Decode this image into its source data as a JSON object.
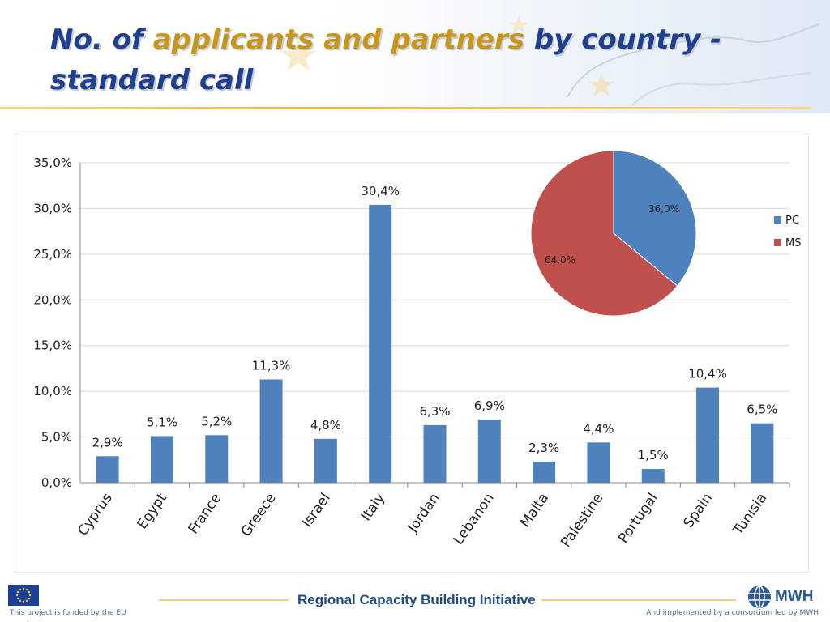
{
  "slide": {
    "title_prefix": "No. of ",
    "title_highlight": "applicants and partners",
    "title_suffix": " by country - standard call"
  },
  "footer": {
    "brand": "Regional Capacity Building Initiative",
    "funded_text": "This project is funded by the EU",
    "implemented_text": "And implemented by a consortium led by MWH",
    "logo_text": "MWH"
  },
  "colors": {
    "title": "#1f3f8f",
    "title_highlight": "#c8961c",
    "bar": "#4f81bd",
    "pie_pc": "#4f81bd",
    "pie_ms": "#c0504d"
  },
  "chart_data": [
    {
      "type": "bar",
      "categories": [
        "Cyprus",
        "Egypt",
        "France",
        "Greece",
        "Israel",
        "Italy",
        "Jordan",
        "Lebanon",
        "Malta",
        "Palestine",
        "Portugal",
        "Spain",
        "Tunisia"
      ],
      "values": [
        2.9,
        5.1,
        5.2,
        11.3,
        4.8,
        30.4,
        6.3,
        6.9,
        2.3,
        4.4,
        1.5,
        10.4,
        6.5
      ],
      "value_labels": [
        "2,9%",
        "5,1%",
        "5,2%",
        "11,3%",
        "4,8%",
        "30,4%",
        "6,3%",
        "6,9%",
        "2,3%",
        "4,4%",
        "1,5%",
        "10,4%",
        "6,5%"
      ],
      "ylim": [
        0,
        35
      ],
      "yticks": [
        0,
        5,
        10,
        15,
        20,
        25,
        30,
        35
      ],
      "ytick_labels": [
        "0,0%",
        "5,0%",
        "10,0%",
        "15,0%",
        "20,0%",
        "25,0%",
        "30,0%",
        "35,0%"
      ],
      "grid": true,
      "legend": "none"
    },
    {
      "type": "pie",
      "categories": [
        "PC",
        "MS"
      ],
      "values": [
        36.0,
        64.0
      ],
      "value_labels": [
        "36,0%",
        "64,0%"
      ],
      "legend": "right"
    }
  ]
}
